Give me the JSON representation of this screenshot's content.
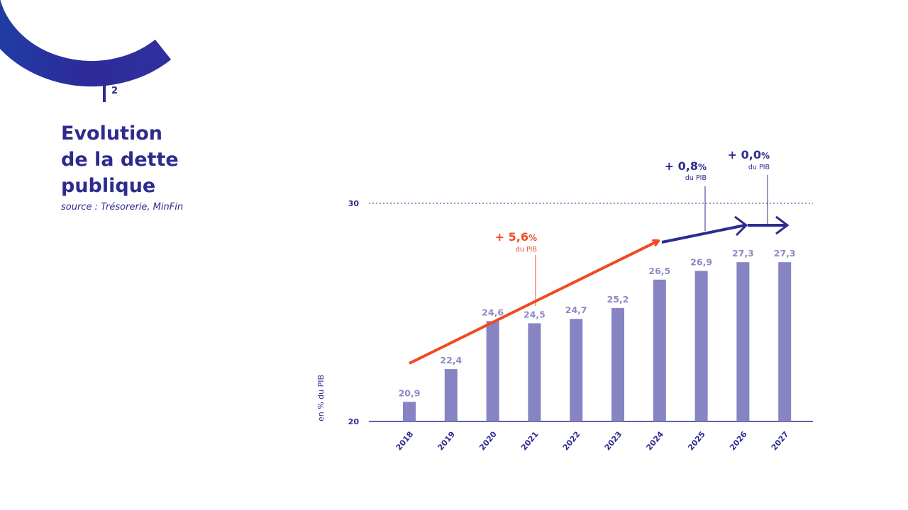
{
  "page": {
    "number": "2",
    "title_lines": [
      "Evolution",
      "de la dette",
      "publique"
    ],
    "source": "source : Trésorerie, MinFin"
  },
  "colors": {
    "primary": "#2e2b8f",
    "bar": "#8684c3",
    "bar_label": "#8e89c6",
    "accent": "#f04a23",
    "decor_dark": "#1e3fa6",
    "decor_light": "#2f2f9e"
  },
  "chart_data": {
    "type": "bar",
    "categories": [
      "2018",
      "2019",
      "2020",
      "2021",
      "2022",
      "2023",
      "2024",
      "2025",
      "2026",
      "2027"
    ],
    "values": [
      20.9,
      22.4,
      24.6,
      24.5,
      24.7,
      25.2,
      26.5,
      26.9,
      27.3,
      27.3
    ],
    "value_labels": [
      "20,9",
      "22,4",
      "24,6",
      "24,5",
      "24,7",
      "25,2",
      "26,5",
      "26,9",
      "27,3",
      "27,3"
    ],
    "ylim": [
      20,
      30
    ],
    "yticks": [
      "20",
      "30"
    ],
    "ylabel": "en % du PIB",
    "reference_line": 30,
    "annotations": [
      {
        "text": "+ 5,6",
        "unit": "%",
        "sub": "du PIB",
        "color": "#f04a23"
      },
      {
        "text": "+ 0,8",
        "unit": "%",
        "sub": "du PIB",
        "color": "#2e2b8f"
      },
      {
        "text": "+ 0,0",
        "unit": "%",
        "sub": "du PIB",
        "color": "#2e2b8f"
      }
    ]
  }
}
